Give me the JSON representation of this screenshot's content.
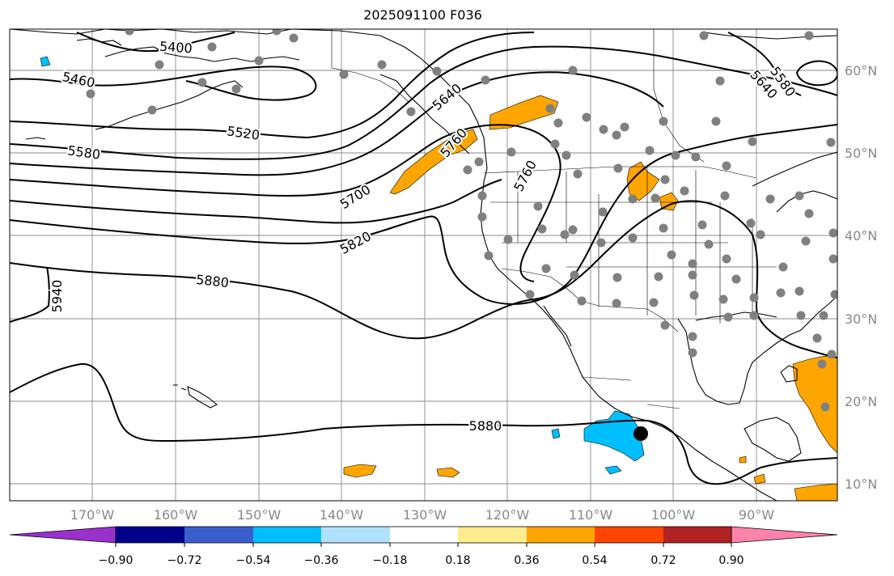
{
  "title": "2025091100 F036",
  "map": {
    "lon_labels": [
      "170°W",
      "160°W",
      "150°W",
      "140°W",
      "130°W",
      "120°W",
      "110°W",
      "100°W",
      "90°W"
    ],
    "lat_labels": [
      "60°N",
      "50°N",
      "40°N",
      "30°N",
      "20°N",
      "10°N"
    ]
  },
  "contour_labels": [
    "5400",
    "5460",
    "5520",
    "5580",
    "5640",
    "5580",
    "5640",
    "5700",
    "5760",
    "5760",
    "5820",
    "5880",
    "5940",
    "5880"
  ],
  "colorbar": {
    "ticks": [
      "−0.90",
      "−0.72",
      "−0.54",
      "−0.36",
      "−0.18",
      "0.18",
      "0.36",
      "0.54",
      "0.72",
      "0.90"
    ],
    "colors": [
      "#9932cc",
      "#00008b",
      "#3a5fcd",
      "#00bfff",
      "#b0e2ff",
      "#ffffff",
      "#ffec8b",
      "#ffa500",
      "#ff4500",
      "#b22222",
      "#ff82ab"
    ]
  },
  "colors": {
    "positive_fill": "#ffa500",
    "negative_fill": "#00bfff",
    "stations": "#808080",
    "marker": "#000000"
  }
}
